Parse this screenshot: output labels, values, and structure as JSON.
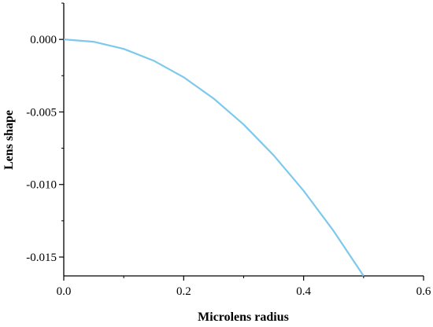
{
  "chart_data": {
    "type": "line",
    "title": "",
    "xlabel": "Microlens radius",
    "ylabel": "Lens shape",
    "xlim": [
      0.0,
      0.6
    ],
    "ylim": [
      -0.0163,
      0.0025
    ],
    "xticks": [
      0.0,
      0.2,
      0.4,
      0.6
    ],
    "xtick_labels": [
      "0.0",
      "0.2",
      "0.4",
      "0.6"
    ],
    "yticks": [
      0.0,
      -0.005,
      -0.01,
      -0.015
    ],
    "ytick_labels": [
      "0.000",
      "-0.005",
      "-0.010",
      "-0.015"
    ],
    "grid": false,
    "series": [
      {
        "color": "#7dc9ee",
        "x": [
          0.0,
          0.05,
          0.1,
          0.15,
          0.2,
          0.25,
          0.3,
          0.35,
          0.4,
          0.45,
          0.5
        ],
        "y": [
          0.0,
          -0.000163,
          -0.000652,
          -0.001467,
          -0.002608,
          -0.004075,
          -0.005868,
          -0.007987,
          -0.010432,
          -0.013203,
          -0.0163
        ]
      }
    ]
  }
}
